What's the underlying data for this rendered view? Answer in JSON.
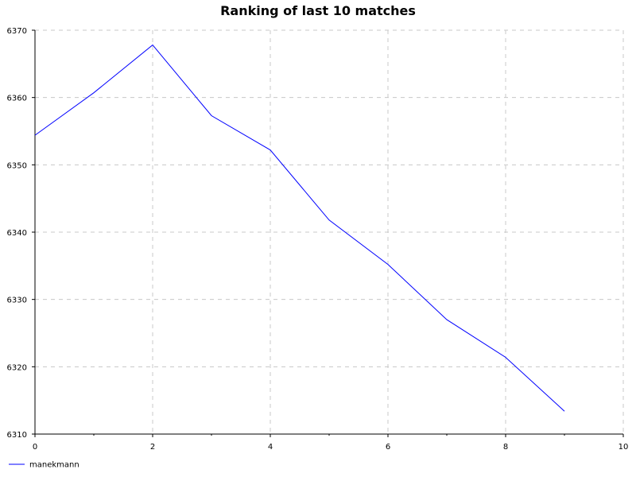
{
  "chart_data": {
    "type": "line",
    "title": "Ranking of last 10 matches",
    "xlabel": "",
    "ylabel": "",
    "xlim": [
      0,
      10
    ],
    "ylim": [
      6310,
      6370
    ],
    "x_ticks": [
      0,
      2,
      4,
      6,
      8,
      10
    ],
    "x_minor_ticks": [
      1,
      3,
      5,
      7,
      9
    ],
    "y_ticks": [
      6310,
      6320,
      6330,
      6340,
      6350,
      6360,
      6370
    ],
    "grid": true,
    "legend_position": "bottom-left",
    "series": [
      {
        "name": "manekmann",
        "color": "#0000ff",
        "x": [
          0,
          1,
          2,
          3,
          4,
          5,
          6,
          7,
          8,
          9
        ],
        "y": [
          6354.4,
          6360.7,
          6367.8,
          6357.3,
          6352.2,
          6341.8,
          6335.2,
          6327.0,
          6321.4,
          6313.4
        ]
      }
    ]
  }
}
